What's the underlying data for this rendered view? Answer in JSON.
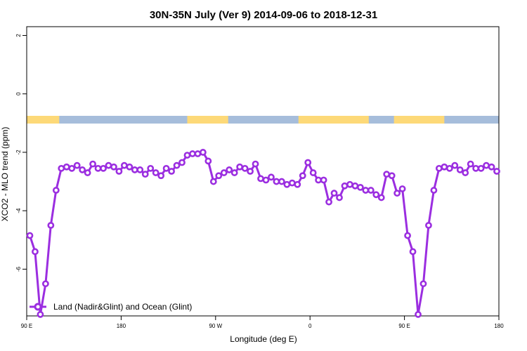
{
  "chart_data": {
    "type": "line",
    "title": "30N-35N July (Ver 9)   2014-09-06 to 2018-12-31",
    "xlabel": "Longitude (deg E)",
    "ylabel": "XCO2 - MLO trend (ppm)",
    "xlim": [
      90,
      540
    ],
    "ylim": [
      -7.6,
      2.3
    ],
    "x_ticks": [
      {
        "value": 90,
        "label": "90 E"
      },
      {
        "value": 180,
        "label": "180"
      },
      {
        "value": 270,
        "label": "90 W"
      },
      {
        "value": 360,
        "label": "0"
      },
      {
        "value": 450,
        "label": "90 E"
      },
      {
        "value": 540,
        "label": "180"
      }
    ],
    "y_ticks": [
      {
        "value": 2,
        "label": "2"
      },
      {
        "value": 0,
        "label": "0"
      },
      {
        "value": -2,
        "label": "-2"
      },
      {
        "value": -4,
        "label": "-4"
      },
      {
        "value": -6,
        "label": "-6"
      }
    ],
    "land_ocean_band": {
      "ocean_color": "#a6bddb",
      "land_color": "#fdd978",
      "land_ranges": [
        [
          90,
          121
        ],
        [
          243,
          282
        ],
        [
          349,
          416
        ],
        [
          440,
          488
        ]
      ]
    },
    "series": [
      {
        "name": "Land (Nadir&Glint) and Ocean (Glint)",
        "color": "#9b2ee0",
        "x": [
          93,
          98,
          103,
          108,
          113,
          118,
          123,
          128,
          133,
          138,
          143,
          148,
          153,
          158,
          163,
          168,
          173,
          178,
          183,
          188,
          193,
          198,
          203,
          208,
          213,
          218,
          223,
          228,
          233,
          238,
          243,
          248,
          253,
          258,
          263,
          268,
          273,
          278,
          283,
          288,
          293,
          298,
          303,
          308,
          313,
          318,
          323,
          328,
          333,
          338,
          343,
          348,
          353,
          358,
          363,
          368,
          373,
          378,
          383,
          388,
          393,
          398,
          403,
          408,
          413,
          418,
          423,
          428,
          433,
          438,
          443,
          448,
          453,
          458,
          463,
          468,
          473,
          478,
          483,
          488,
          493,
          498,
          503,
          508,
          513,
          518,
          523,
          528,
          533,
          538
        ],
        "values": [
          -4.85,
          -5.4,
          -7.55,
          -6.5,
          -4.5,
          -3.3,
          -2.55,
          -2.5,
          -2.55,
          -2.45,
          -2.6,
          -2.7,
          -2.4,
          -2.55,
          -2.55,
          -2.45,
          -2.5,
          -2.65,
          -2.45,
          -2.5,
          -2.6,
          -2.6,
          -2.75,
          -2.55,
          -2.7,
          -2.8,
          -2.55,
          -2.65,
          -2.45,
          -2.35,
          -2.1,
          -2.05,
          -2.05,
          -2.0,
          -2.3,
          -3.0,
          -2.8,
          -2.7,
          -2.6,
          -2.7,
          -2.5,
          -2.55,
          -2.65,
          -2.4,
          -2.9,
          -2.95,
          -2.85,
          -3.0,
          -3.0,
          -3.1,
          -3.05,
          -3.1,
          -2.8,
          -2.35,
          -2.7,
          -2.95,
          -2.95,
          -3.7,
          -3.4,
          -3.55,
          -3.15,
          -3.1,
          -3.15,
          -3.2,
          -3.3,
          -3.3,
          -3.45,
          -3.55,
          -2.75,
          -2.8,
          -3.4,
          -3.25,
          -4.85,
          -5.4,
          -7.55,
          -6.5,
          -4.5,
          -3.3,
          -2.55,
          -2.5,
          -2.55,
          -2.45,
          -2.6,
          -2.7,
          -2.4,
          -2.55,
          -2.55,
          -2.45,
          -2.5,
          -2.65
        ]
      }
    ],
    "legend": {
      "position": "bottom-left",
      "entries": [
        "Land (Nadir&Glint) and Ocean (Glint)"
      ]
    }
  }
}
